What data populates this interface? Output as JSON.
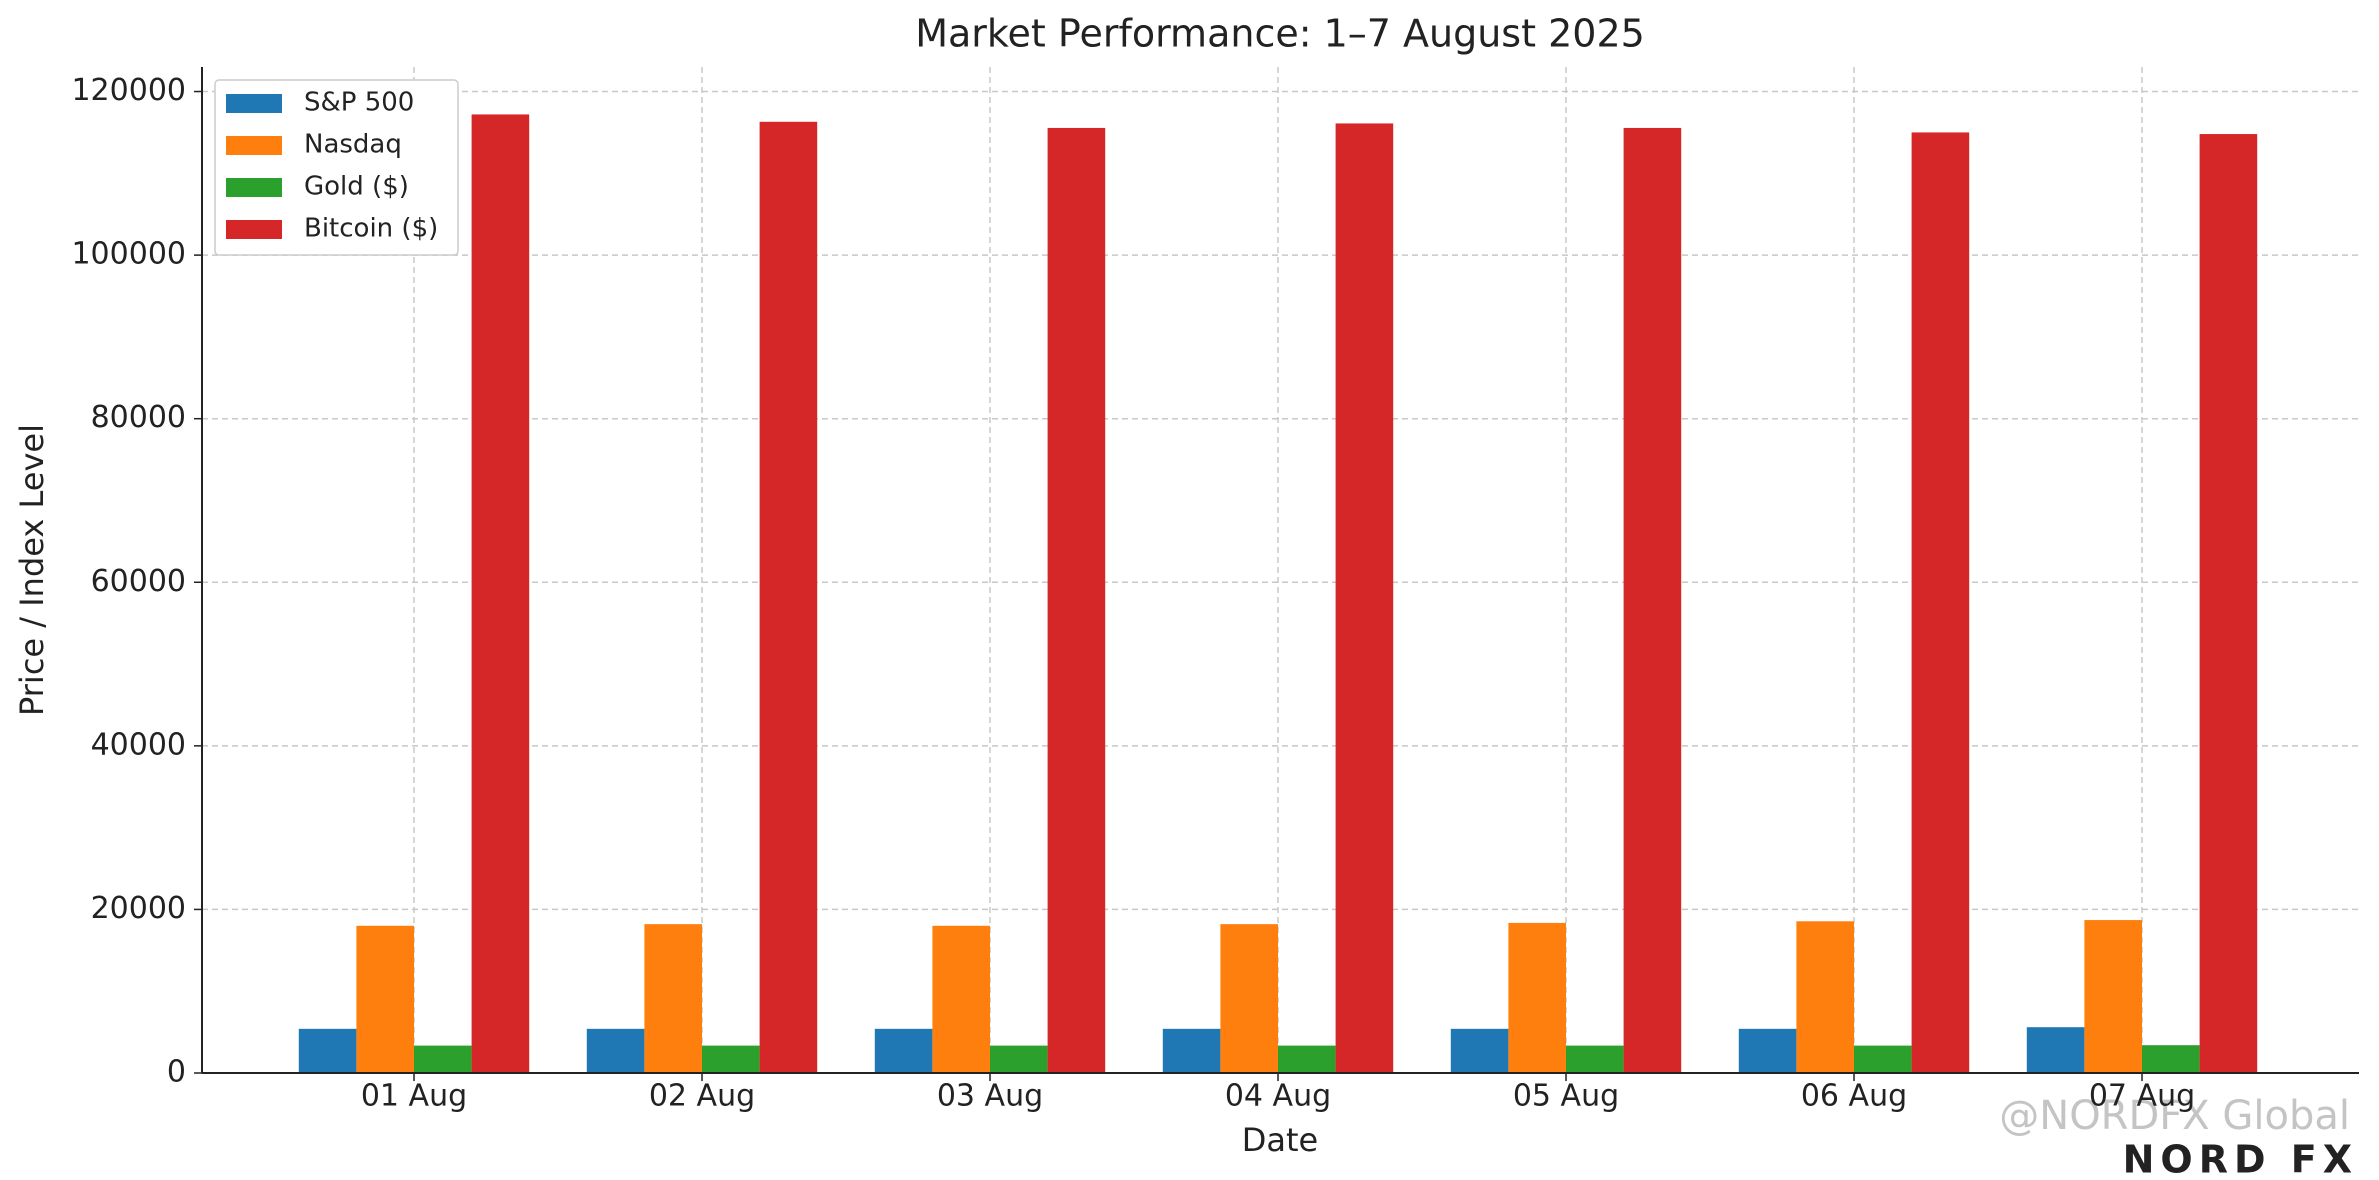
{
  "chart_data": {
    "type": "bar",
    "title": "Market Performance: 1–7 August 2025",
    "x_label": "Date",
    "y_label": "Price / Index Level",
    "categories": [
      "01 Aug",
      "02 Aug",
      "03 Aug",
      "04 Aug",
      "05 Aug",
      "06 Aug",
      "07 Aug"
    ],
    "series": [
      {
        "name": "S&P 500",
        "color": "#1f77b4",
        "values": [
          5400,
          5400,
          5400,
          5400,
          5400,
          5400,
          5600
        ]
      },
      {
        "name": "Nasdaq",
        "color": "#ff7f0e",
        "values": [
          18000,
          18200,
          18000,
          18200,
          18350,
          18550,
          18700
        ]
      },
      {
        "name": "Gold ($)",
        "color": "#2ca02c",
        "values": [
          3350,
          3350,
          3350,
          3350,
          3350,
          3350,
          3400
        ]
      },
      {
        "name": "Bitcoin ($)",
        "color": "#d62728",
        "values": [
          117200,
          116300,
          115550,
          116100,
          115550,
          115000,
          114800
        ]
      }
    ],
    "ylim": [
      0,
      123000
    ],
    "yticks": [
      0,
      20000,
      40000,
      60000,
      80000,
      100000,
      120000
    ],
    "grid": true,
    "legend": "upper left",
    "watermark": "@NORDFX Global",
    "logo": "NORD FX"
  }
}
